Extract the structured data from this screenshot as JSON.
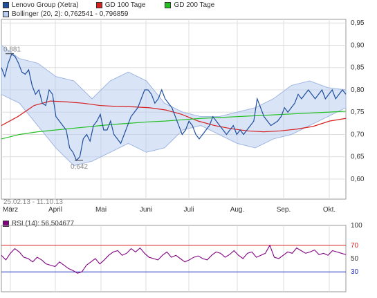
{
  "legend": {
    "lenovo": {
      "label": "Lenovo Group (Xetra)",
      "color": "#1f4e9c"
    },
    "gd100": {
      "label": "GD 100 Tage",
      "color": "#d62020"
    },
    "gd200": {
      "label": "GD 200 Tage",
      "color": "#22c022"
    },
    "bollinger": {
      "label": "Bollinger (20, 2): 0,762541 - 0,796859",
      "color": "#b9cdf0"
    },
    "rsi": {
      "label": "RSI (14): 56,504677",
      "color": "#800080"
    }
  },
  "range_label": "25.02.13 - 11.10.13",
  "chart_data": [
    {
      "type": "line",
      "title": "",
      "x_labels": [
        "März",
        "April",
        "Mai",
        "Juni",
        "Juli",
        "Aug.",
        "Sep.",
        "Okt."
      ],
      "y_ticks": [
        "0,95",
        "0,90",
        "0,85",
        "0,80",
        "0,75",
        "0,70",
        "0,65",
        "0,60"
      ],
      "ylim": [
        0.555,
        0.955
      ],
      "annotations": {
        "high": "0,881",
        "low": "0,642"
      },
      "series": [
        {
          "name": "Lenovo Group (Xetra)",
          "values": [
            0.85,
            0.83,
            0.86,
            0.88,
            0.875,
            0.86,
            0.84,
            0.835,
            0.845,
            0.81,
            0.79,
            0.8,
            0.77,
            0.765,
            0.8,
            0.79,
            0.74,
            0.73,
            0.72,
            0.71,
            0.67,
            0.66,
            0.642,
            0.65,
            0.69,
            0.7,
            0.685,
            0.72,
            0.73,
            0.745,
            0.71,
            0.71,
            0.73,
            0.7,
            0.69,
            0.68,
            0.7,
            0.72,
            0.74,
            0.75,
            0.76,
            0.78,
            0.8,
            0.8,
            0.79,
            0.77,
            0.78,
            0.8,
            0.78,
            0.77,
            0.76,
            0.74,
            0.72,
            0.7,
            0.71,
            0.73,
            0.72,
            0.7,
            0.69,
            0.7,
            0.71,
            0.72,
            0.74,
            0.73,
            0.72,
            0.71,
            0.7,
            0.71,
            0.72,
            0.7,
            0.71,
            0.7,
            0.71,
            0.72,
            0.73,
            0.78,
            0.76,
            0.74,
            0.73,
            0.72,
            0.725,
            0.73,
            0.74,
            0.76,
            0.75,
            0.76,
            0.77,
            0.79,
            0.78,
            0.79,
            0.8,
            0.79,
            0.78,
            0.79,
            0.8,
            0.78,
            0.79,
            0.8,
            0.78,
            0.79,
            0.8,
            0.79
          ]
        },
        {
          "name": "GD 100 Tage",
          "values": [
            0.72,
            0.74,
            0.765,
            0.775,
            0.773,
            0.77,
            0.765,
            0.763,
            0.762,
            0.76,
            0.755,
            0.745,
            0.73,
            0.72,
            0.713,
            0.708,
            0.706,
            0.708,
            0.712,
            0.718,
            0.73,
            0.736
          ]
        },
        {
          "name": "GD 200 Tage",
          "values": [
            0.69,
            0.7,
            0.706,
            0.71,
            0.714,
            0.718,
            0.722,
            0.725,
            0.728,
            0.73,
            0.733,
            0.736,
            0.738,
            0.74,
            0.742,
            0.744,
            0.746,
            0.748,
            0.75,
            0.752
          ]
        },
        {
          "name": "Bollinger Upper",
          "values": [
            0.9,
            0.87,
            0.86,
            0.83,
            0.82,
            0.78,
            0.82,
            0.84,
            0.82,
            0.77,
            0.75,
            0.74,
            0.74,
            0.75,
            0.76,
            0.78,
            0.81,
            0.82,
            0.805,
            0.8
          ]
        },
        {
          "name": "Bollinger Lower",
          "values": [
            0.79,
            0.77,
            0.72,
            0.67,
            0.63,
            0.64,
            0.66,
            0.68,
            0.66,
            0.67,
            0.71,
            0.72,
            0.7,
            0.68,
            0.67,
            0.69,
            0.7,
            0.72,
            0.74,
            0.76
          ]
        }
      ]
    },
    {
      "type": "line",
      "title": "",
      "y_ticks": [
        "100",
        "70",
        "50",
        "30"
      ],
      "ylim": [
        0,
        100
      ],
      "reference_lines": [
        70,
        30
      ],
      "series": [
        {
          "name": "RSI (14)",
          "values": [
            55,
            48,
            58,
            65,
            60,
            52,
            50,
            45,
            52,
            48,
            42,
            40,
            38,
            45,
            40,
            35,
            32,
            28,
            30,
            40,
            45,
            50,
            42,
            48,
            55,
            60,
            62,
            55,
            58,
            65,
            60,
            66,
            58,
            52,
            50,
            48,
            55,
            60,
            52,
            55,
            50,
            45,
            48,
            52,
            54,
            50,
            48,
            55,
            60,
            58,
            52,
            56,
            62,
            55,
            50,
            58,
            60,
            52,
            55,
            58,
            70,
            52,
            50,
            55,
            60,
            58,
            66,
            62,
            58,
            60,
            63,
            56,
            58,
            55,
            62,
            60,
            58,
            56
          ]
        }
      ]
    }
  ]
}
